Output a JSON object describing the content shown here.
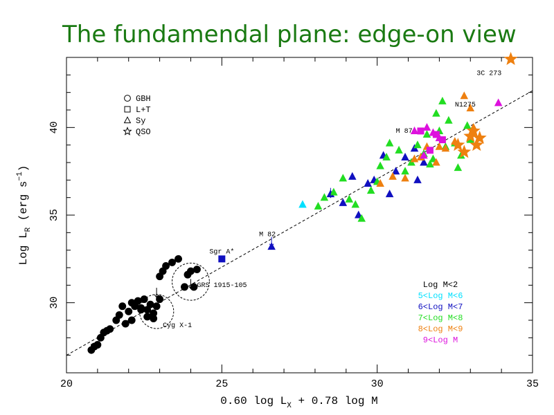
{
  "title": "The fundamendal plane: edge-on view",
  "chart_data": {
    "type": "scatter",
    "xlabel": "0.60 log L",
    "xlabel_sub": "X",
    "xlabel_rest": " + 0.78 log M",
    "ylabel_main": "Log L",
    "ylabel_sub": "R",
    "ylabel_unit": " (erg s",
    "ylabel_sup": "−1",
    "ylabel_end": ")",
    "xlim": [
      20,
      35
    ],
    "ylim": [
      26,
      44
    ],
    "xticks": [
      20,
      25,
      30,
      35
    ],
    "yticks": [
      30,
      35,
      40
    ],
    "fit_line": {
      "x": [
        20,
        35
      ],
      "y": [
        27.0,
        42.1
      ]
    },
    "type_legend": [
      {
        "symbol": "circle",
        "label": "GBH"
      },
      {
        "symbol": "square",
        "label": "L+T"
      },
      {
        "symbol": "triangle",
        "label": "Sy"
      },
      {
        "symbol": "star",
        "label": "QSO"
      }
    ],
    "mass_legend": [
      {
        "label": "Log M<2",
        "color": "#000000"
      },
      {
        "label": "5<Log M<6",
        "color": "#00e0ff"
      },
      {
        "label": "6<Log M<7",
        "color": "#1010c0"
      },
      {
        "label": "7<Log M<8",
        "color": "#22dd22"
      },
      {
        "label": "8<Log M<9",
        "color": "#ee8010"
      },
      {
        "label": "9<Log M",
        "color": "#dd11dd"
      }
    ],
    "annotations": [
      {
        "text": "3C 273",
        "x": 33.2,
        "y": 43.0
      },
      {
        "text": "N1275",
        "x": 32.5,
        "y": 41.2
      },
      {
        "text": "M 87",
        "x": 30.6,
        "y": 39.7
      },
      {
        "text": "M 82",
        "x": 26.2,
        "y": 33.8
      },
      {
        "text": "Sgr A*",
        "x": 24.6,
        "y": 32.8
      },
      {
        "text": "GRS 1915-105",
        "x": 24.2,
        "y": 30.9
      },
      {
        "text": "Cyg X-1",
        "x": 23.1,
        "y": 28.6
      }
    ],
    "circles": [
      {
        "x": 24.0,
        "y": 31.2,
        "r": 0.6
      },
      {
        "x": 22.9,
        "y": 29.5,
        "r": 0.55
      }
    ],
    "series": [
      {
        "name": "Log M<2",
        "color": "#000000",
        "symbol": "circle",
        "points": [
          [
            20.8,
            27.3
          ],
          [
            20.9,
            27.5
          ],
          [
            21.0,
            27.6
          ],
          [
            21.1,
            28.0
          ],
          [
            21.2,
            28.3
          ],
          [
            21.3,
            28.4
          ],
          [
            21.4,
            28.5
          ],
          [
            21.6,
            29.0
          ],
          [
            21.7,
            29.3
          ],
          [
            21.8,
            29.8
          ],
          [
            22.0,
            29.5
          ],
          [
            22.1,
            30.0
          ],
          [
            22.2,
            29.9
          ],
          [
            22.3,
            30.1
          ],
          [
            22.4,
            29.7
          ],
          [
            22.5,
            30.2
          ],
          [
            22.6,
            29.6
          ],
          [
            22.7,
            29.9
          ],
          [
            22.8,
            29.4
          ],
          [
            22.9,
            29.8
          ],
          [
            23.0,
            31.5
          ],
          [
            23.1,
            31.8
          ],
          [
            23.2,
            32.1
          ],
          [
            23.4,
            32.3
          ],
          [
            23.6,
            32.5
          ],
          [
            23.9,
            31.6
          ],
          [
            24.0,
            31.8
          ],
          [
            24.2,
            31.9
          ],
          [
            23.8,
            30.9
          ],
          [
            24.1,
            30.9
          ],
          [
            22.6,
            29.2
          ],
          [
            22.8,
            29.1
          ],
          [
            21.9,
            28.8
          ],
          [
            22.1,
            29.0
          ],
          [
            23.0,
            30.2
          ],
          [
            22.2,
            29.8
          ],
          [
            22.4,
            29.6
          ]
        ]
      },
      {
        "name": "Sgr",
        "color": "#1010c0",
        "symbol": "square",
        "points": [
          [
            25.0,
            32.5
          ]
        ]
      },
      {
        "name": "5<Log M<6",
        "color": "#00e0ff",
        "symbol": "triangle",
        "points": [
          [
            27.6,
            35.6
          ]
        ]
      },
      {
        "name": "6<Log M<7",
        "color": "#1010c0",
        "symbol": "triangle",
        "points": [
          [
            26.6,
            33.2
          ],
          [
            28.5,
            36.2
          ],
          [
            28.9,
            35.7
          ],
          [
            29.2,
            37.2
          ],
          [
            29.4,
            35.0
          ],
          [
            29.7,
            36.8
          ],
          [
            29.9,
            37.0
          ],
          [
            30.4,
            36.2
          ],
          [
            30.6,
            37.5
          ],
          [
            30.9,
            38.3
          ],
          [
            31.3,
            37.0
          ],
          [
            31.5,
            38.0
          ],
          [
            31.2,
            38.8
          ],
          [
            30.2,
            38.4
          ]
        ]
      },
      {
        "name": "7<Log M<8",
        "color": "#22dd22",
        "symbol": "triangle",
        "points": [
          [
            28.1,
            35.5
          ],
          [
            28.3,
            36.0
          ],
          [
            28.6,
            36.3
          ],
          [
            28.9,
            37.1
          ],
          [
            29.1,
            35.9
          ],
          [
            29.3,
            35.6
          ],
          [
            29.5,
            34.8
          ],
          [
            29.8,
            36.4
          ],
          [
            30.0,
            36.9
          ],
          [
            30.1,
            37.8
          ],
          [
            30.3,
            38.3
          ],
          [
            30.4,
            39.1
          ],
          [
            30.7,
            38.7
          ],
          [
            30.9,
            37.5
          ],
          [
            31.1,
            38.0
          ],
          [
            31.3,
            39.0
          ],
          [
            31.5,
            38.5
          ],
          [
            31.6,
            39.6
          ],
          [
            31.8,
            38.2
          ],
          [
            32.0,
            39.8
          ],
          [
            32.1,
            41.5
          ],
          [
            32.3,
            40.4
          ],
          [
            32.5,
            39.1
          ],
          [
            32.7,
            38.4
          ],
          [
            32.9,
            40.1
          ],
          [
            33.0,
            39.3
          ],
          [
            32.6,
            37.7
          ],
          [
            31.7,
            37.9
          ],
          [
            32.2,
            38.9
          ],
          [
            31.9,
            40.8
          ]
        ]
      },
      {
        "name": "8<Log M<9",
        "color": "#ee8010",
        "symbol": "triangle",
        "points": [
          [
            30.1,
            36.8
          ],
          [
            30.5,
            37.2
          ],
          [
            30.9,
            37.1
          ],
          [
            31.2,
            38.2
          ],
          [
            31.6,
            38.9
          ],
          [
            31.9,
            38.0
          ],
          [
            32.2,
            38.8
          ],
          [
            32.5,
            39.2
          ],
          [
            32.8,
            41.8
          ],
          [
            33.0,
            41.1
          ],
          [
            33.1,
            40.0
          ],
          [
            32.0,
            38.9
          ],
          [
            31.4,
            38.3
          ]
        ]
      },
      {
        "name": "8<Log M<9 QSO",
        "color": "#ee8010",
        "symbol": "star",
        "points": [
          [
            34.3,
            43.9
          ],
          [
            32.6,
            39.0
          ],
          [
            33.0,
            39.5
          ],
          [
            33.2,
            39.0
          ],
          [
            33.3,
            39.4
          ],
          [
            33.1,
            39.8
          ],
          [
            32.8,
            38.6
          ]
        ]
      },
      {
        "name": "9<Log M",
        "color": "#dd11dd",
        "symbol": "triangle",
        "points": [
          [
            33.9,
            41.4
          ],
          [
            31.6,
            40.0
          ],
          [
            31.2,
            39.8
          ],
          [
            31.8,
            39.7
          ],
          [
            32.0,
            39.4
          ],
          [
            31.5,
            38.4
          ]
        ]
      },
      {
        "name": "9<Log M sq",
        "color": "#dd11dd",
        "symbol": "square",
        "points": [
          [
            31.4,
            39.8
          ],
          [
            31.9,
            39.6
          ],
          [
            32.1,
            39.3
          ],
          [
            31.7,
            38.7
          ]
        ]
      }
    ],
    "upper_limits": [
      {
        "x": 20.8,
        "y": 27.1,
        "color": "#000000"
      },
      {
        "x": 22.9,
        "y": 30.3,
        "color": "#000000"
      },
      {
        "x": 24.0,
        "y": 30.8,
        "color": "#000000"
      },
      {
        "x": 26.6,
        "y": 33.2,
        "color": "#1010c0"
      },
      {
        "x": 28.5,
        "y": 36.0,
        "color": "#1010c0"
      }
    ]
  }
}
